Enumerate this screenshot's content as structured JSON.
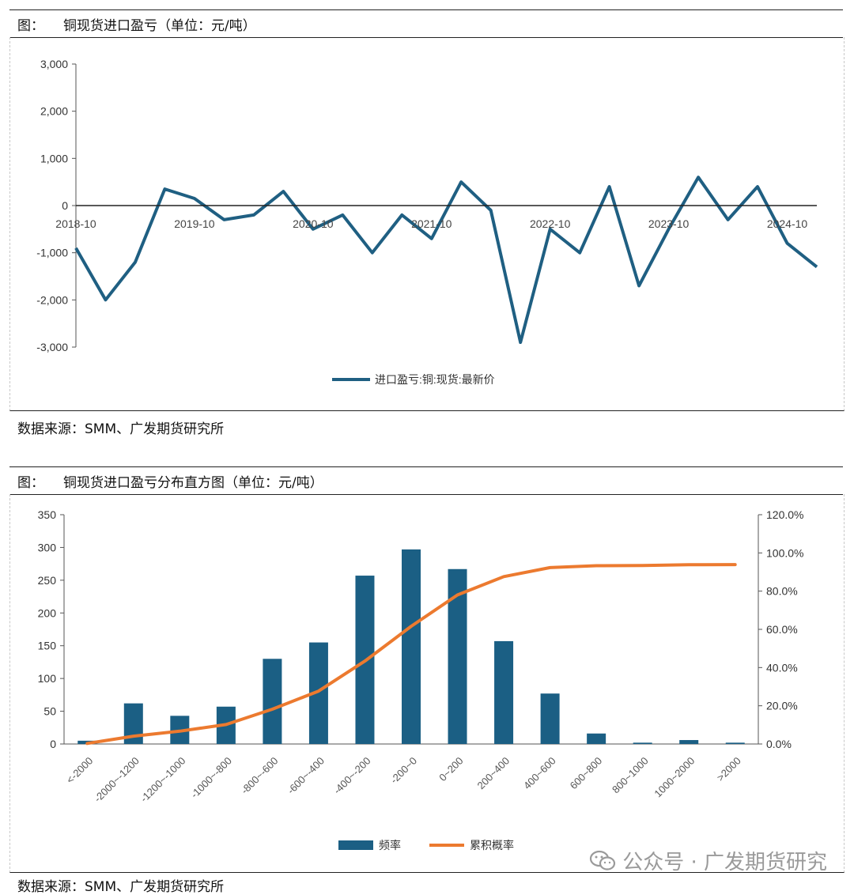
{
  "chart1": {
    "title_prefix": "图：",
    "title": "铜现货进口盈亏（单位：元/吨）",
    "source": "数据来源：SMM、广发期货研究所",
    "chart_data": {
      "type": "line",
      "series": [
        {
          "name": "进口盈亏:铜:现货:最新价",
          "x": [
            "2018-10",
            "2019-01",
            "2019-04",
            "2019-07",
            "2019-10",
            "2020-01",
            "2020-04",
            "2020-07",
            "2020-10",
            "2021-01",
            "2021-04",
            "2021-07",
            "2021-10",
            "2022-01",
            "2022-04",
            "2022-07",
            "2022-10",
            "2023-01",
            "2023-04",
            "2023-07",
            "2023-10",
            "2024-01",
            "2024-04",
            "2024-07",
            "2024-10",
            "2025-01"
          ],
          "values": [
            -900,
            -2000,
            -1200,
            350,
            150,
            -300,
            -200,
            300,
            -500,
            -200,
            -1000,
            -200,
            -700,
            500,
            -100,
            -2900,
            -500,
            -1000,
            400,
            -1700,
            -500,
            600,
            -300,
            400,
            -800,
            -1300
          ],
          "color": "#1f5f82"
        }
      ],
      "xticks": [
        "2018-10",
        "2019-10",
        "2020-10",
        "2021-10",
        "2022-10",
        "2023-10",
        "2024-10"
      ],
      "yticks": [
        "3,000",
        "2,000",
        "1,000",
        "0",
        "-1,000",
        "-2,000",
        "-3,000"
      ],
      "ylim": [
        -3000,
        3000
      ],
      "legend": "bottom"
    }
  },
  "chart2": {
    "title_prefix": "图：",
    "title": "铜现货进口盈亏分布直方图（单位：元/吨）",
    "source": "数据来源：SMM、广发期货研究所",
    "chart_data": {
      "type": "bar",
      "categories": [
        "<-2000",
        "-2000~-1200",
        "-1200~-1000",
        "-1000~-800",
        "-800~-600",
        "-600~-400",
        "-400~-200",
        "-200~0",
        "0~200",
        "200~400",
        "400~600",
        "600~800",
        "800~1000",
        "1000~2000",
        ">2000"
      ],
      "series": [
        {
          "name": "频率",
          "type": "bar",
          "values": [
            5,
            62,
            43,
            57,
            130,
            155,
            257,
            297,
            267,
            157,
            77,
            16,
            2,
            6,
            2
          ],
          "color": "#1b5f84"
        },
        {
          "name": "累积概率",
          "type": "line",
          "values": [
            0.3,
            4.1,
            6.7,
            10.2,
            18.2,
            27.7,
            43.4,
            61.6,
            78.0,
            87.6,
            92.3,
            93.3,
            93.4,
            93.8,
            93.9
          ],
          "color": "#ec7a2f"
        }
      ],
      "y_left_ticks": [
        "350",
        "300",
        "250",
        "200",
        "150",
        "100",
        "50",
        "0"
      ],
      "y_right_ticks": [
        "120.0%",
        "100.0%",
        "80.0%",
        "60.0%",
        "40.0%",
        "20.0%",
        "0.0%"
      ],
      "ylim_left": [
        0,
        350
      ],
      "ylim_right": [
        0,
        120
      ],
      "legend": "bottom"
    }
  },
  "watermark": {
    "text": "公众号 · 广发期货研究",
    "icon": "wechat-icon"
  }
}
